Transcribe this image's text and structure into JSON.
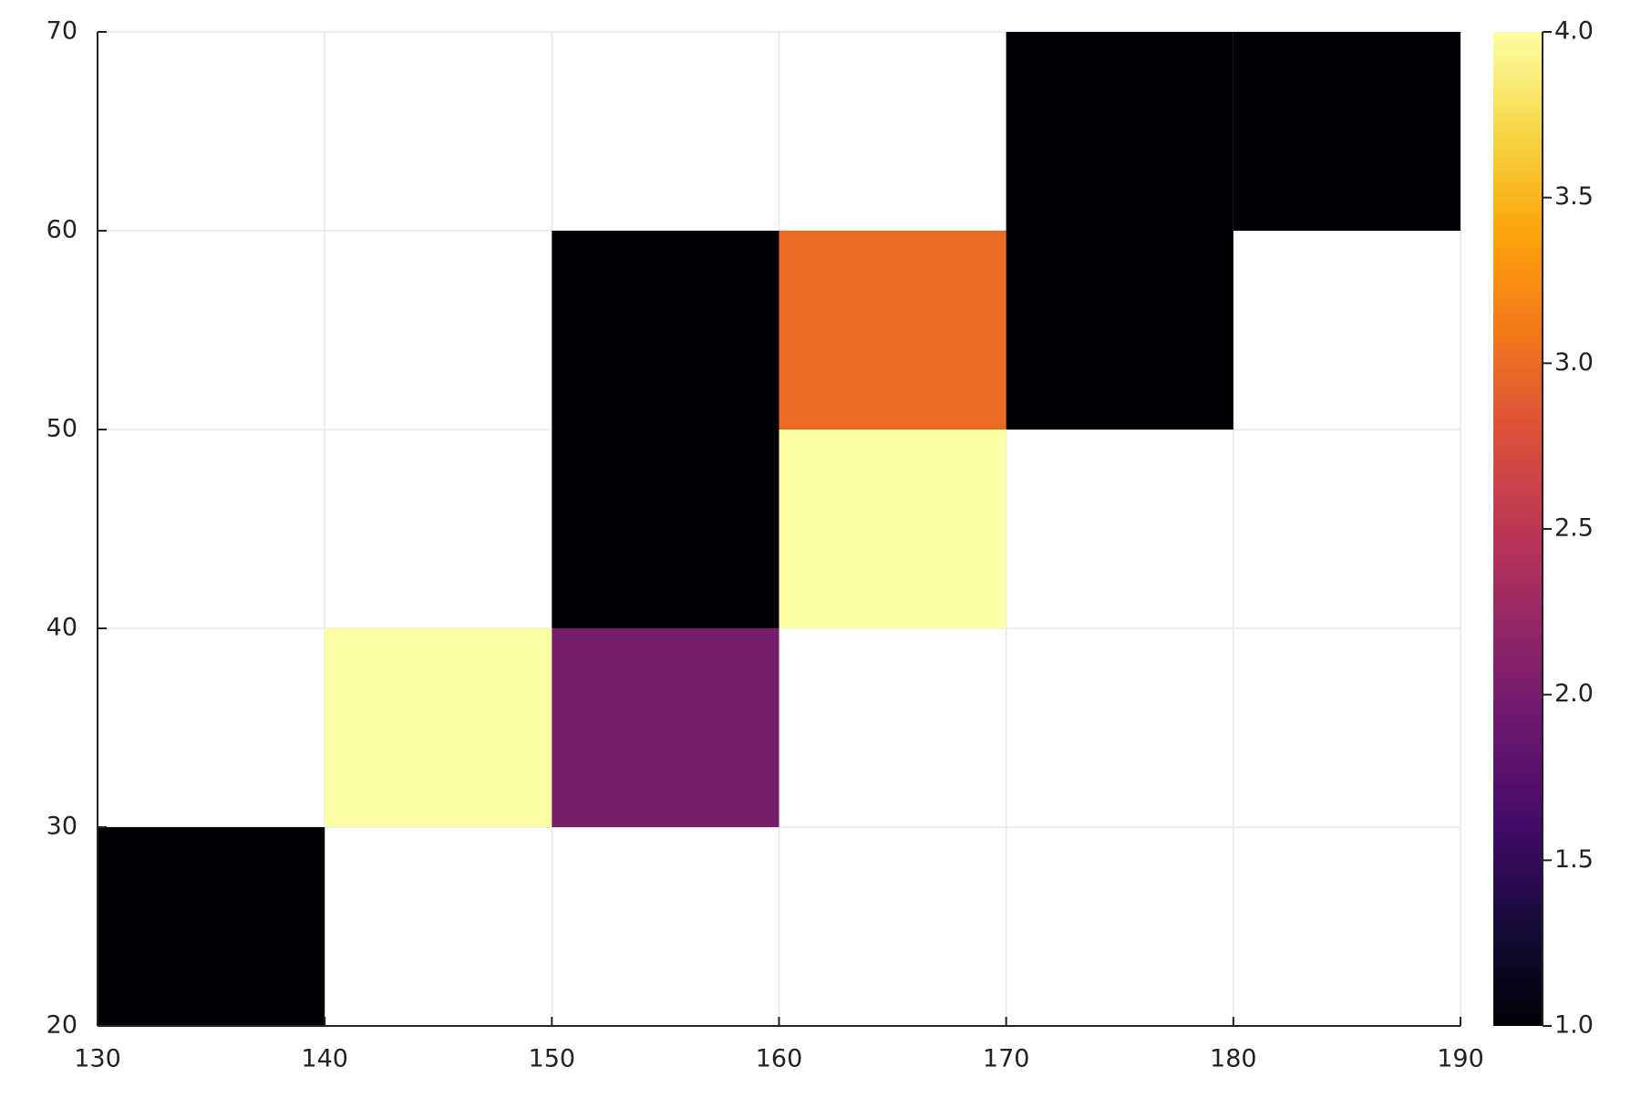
{
  "chart_data": {
    "type": "histogram2d",
    "xbins": [
      130,
      140,
      150,
      160,
      170,
      180,
      190
    ],
    "ybins": [
      20,
      30,
      40,
      50,
      60,
      70
    ],
    "z": [
      [
        1,
        null,
        null,
        null,
        null,
        null
      ],
      [
        null,
        4,
        2,
        null,
        null,
        null
      ],
      [
        null,
        null,
        1,
        4,
        null,
        null
      ],
      [
        null,
        null,
        1,
        3,
        1,
        null
      ],
      [
        null,
        null,
        null,
        null,
        1,
        1
      ]
    ],
    "colormap": "inferno",
    "clim": [
      1,
      4
    ],
    "cticks": [
      {
        "value": 1,
        "label": "1.0"
      },
      1.5,
      {
        "value": 2,
        "label": "2.0"
      },
      2.5,
      {
        "value": 3,
        "label": "3.0"
      },
      3.5,
      {
        "value": 4,
        "label": "4.0"
      }
    ],
    "xlim": [
      130,
      190
    ],
    "ylim": [
      20,
      70
    ],
    "xticks": [
      130,
      140,
      150,
      160,
      170,
      180,
      190
    ],
    "yticks": [
      20,
      30,
      40,
      50,
      60,
      70
    ],
    "grid": true
  }
}
